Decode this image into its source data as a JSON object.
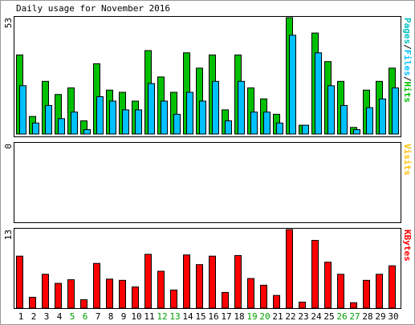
{
  "window": {
    "title": "Daily usage for November 2016"
  },
  "chart_data": {
    "type": "bar",
    "title": "Daily usage for November 2016",
    "categories": [
      "1",
      "2",
      "3",
      "4",
      "5",
      "6",
      "7",
      "8",
      "9",
      "10",
      "11",
      "12",
      "13",
      "14",
      "15",
      "16",
      "17",
      "18",
      "19",
      "20",
      "21",
      "22",
      "23",
      "24",
      "25",
      "26",
      "27",
      "28",
      "29",
      "30"
    ],
    "weekend_days": [
      "5",
      "6",
      "12",
      "13",
      "19",
      "20",
      "26",
      "27"
    ],
    "colors": {
      "hits": "#00c000",
      "files": "#00c0ff",
      "pages": "#00c0c0",
      "visits": "#ffc000",
      "kbytes": "#ff0000",
      "weekday_label": "#000000",
      "weekend_label": "#00a000"
    },
    "panels": [
      {
        "id": "hits-panel",
        "axis_max_label": "53",
        "ymax": 53,
        "legend": [
          {
            "text": "Pages",
            "color": "#00c0c0"
          },
          {
            "text": "/",
            "color": "#000000"
          },
          {
            "text": "Files",
            "color": "#00c0ff"
          },
          {
            "text": "/",
            "color": "#000000"
          },
          {
            "text": "Hits",
            "color": "#00c000"
          }
        ],
        "series": [
          {
            "name": "Hits",
            "color": "#00c000",
            "values": [
              36,
              8,
              24,
              18,
              21,
              6,
              32,
              20,
              19,
              15,
              38,
              26,
              19,
              37,
              30,
              36,
              11,
              36,
              21,
              16,
              9,
              53,
              4,
              46,
              33,
              24,
              3,
              20,
              24,
              30
            ]
          },
          {
            "name": "Files",
            "color": "#00c0ff",
            "values": [
              22,
              5,
              13,
              7,
              10,
              2,
              17,
              15,
              11,
              11,
              23,
              15,
              9,
              19,
              15,
              24,
              6,
              24,
              10,
              10,
              5,
              45,
              4,
              37,
              22,
              13,
              2,
              12,
              16,
              21
            ]
          }
        ]
      },
      {
        "id": "visits-panel",
        "axis_max_label": "0",
        "ymax": 0,
        "legend": [
          {
            "text": "Visits",
            "color": "#ffc000"
          }
        ],
        "series": [
          {
            "name": "Visits",
            "color": "#ffc000",
            "values": [
              0,
              0,
              0,
              0,
              0,
              0,
              0,
              0,
              0,
              0,
              0,
              0,
              0,
              0,
              0,
              0,
              0,
              0,
              0,
              0,
              0,
              0,
              0,
              0,
              0,
              0,
              0,
              0,
              0,
              0
            ]
          }
        ]
      },
      {
        "id": "kbytes-panel",
        "axis_max_label": "13",
        "ymax": 13,
        "legend": [
          {
            "text": "KBytes",
            "color": "#ff0000"
          }
        ],
        "series": [
          {
            "name": "KBytes",
            "color": "#ff0000",
            "values": [
              8.6,
              1.8,
              5.6,
              4.1,
              4.7,
              1.4,
              7.4,
              4.8,
              4.6,
              3.5,
              8.9,
              6.1,
              3.0,
              8.8,
              7.2,
              8.6,
              2.6,
              8.7,
              4.9,
              3.8,
              2.1,
              13,
              1.0,
              11.2,
              7.6,
              5.6,
              0.9,
              4.6,
              5.6,
              7.0
            ]
          }
        ]
      }
    ]
  }
}
